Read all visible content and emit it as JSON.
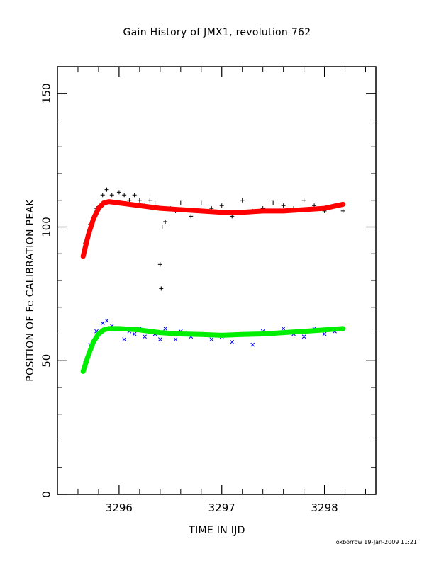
{
  "chart_data": {
    "type": "scatter",
    "title": "Gain History of JMX1, revolution 762",
    "xlabel": "TIME IN IJD",
    "ylabel": "POSITION OF Fe CALIBRATION PEAK",
    "xlim": [
      3295.4,
      3298.5
    ],
    "ylim": [
      0,
      160
    ],
    "xticks": [
      3296,
      3297,
      3298
    ],
    "yticks": [
      0,
      50,
      100,
      150
    ],
    "grid": false,
    "series": [
      {
        "marker": "plus",
        "color": "#000000",
        "x": [
          3295.67,
          3295.72,
          3295.78,
          3295.84,
          3295.88,
          3295.93,
          3296.0,
          3296.05,
          3296.1,
          3296.15,
          3296.2,
          3296.25,
          3296.3,
          3296.35,
          3296.4,
          3296.41,
          3296.42,
          3296.45,
          3296.5,
          3296.55,
          3296.6,
          3296.7,
          3296.8,
          3296.9,
          3297.0,
          3297.1,
          3297.2,
          3297.3,
          3297.4,
          3297.5,
          3297.6,
          3297.7,
          3297.8,
          3297.9,
          3298.0,
          3298.1,
          3298.18
        ],
        "y": [
          94,
          101,
          107,
          112,
          114,
          112,
          113,
          112,
          110,
          112,
          110,
          108,
          110,
          109,
          86,
          77,
          100,
          102,
          107,
          106,
          109,
          104,
          109,
          107,
          108,
          104,
          110,
          106,
          107,
          109,
          108,
          107,
          110,
          108,
          106,
          108,
          106
        ]
      },
      {
        "marker": "cross",
        "color": "#0000ff",
        "x": [
          3295.67,
          3295.72,
          3295.78,
          3295.84,
          3295.88,
          3295.93,
          3296.0,
          3296.05,
          3296.1,
          3296.15,
          3296.2,
          3296.25,
          3296.3,
          3296.35,
          3296.4,
          3296.45,
          3296.5,
          3296.55,
          3296.6,
          3296.7,
          3296.8,
          3296.9,
          3297.0,
          3297.1,
          3297.2,
          3297.3,
          3297.4,
          3297.5,
          3297.6,
          3297.7,
          3297.8,
          3297.9,
          3298.0,
          3298.1,
          3298.18
        ],
        "y": [
          49,
          56,
          61,
          64,
          65,
          63,
          62,
          58,
          61,
          60,
          62,
          59,
          61,
          60,
          58,
          62,
          60,
          58,
          61,
          59,
          60,
          58,
          59,
          57,
          60,
          56,
          61,
          60,
          62,
          60,
          59,
          62,
          60,
          61,
          62
        ]
      },
      {
        "marker": "thick-line",
        "color": "#ff0000",
        "x": [
          3295.65,
          3295.7,
          3295.75,
          3295.8,
          3295.85,
          3295.9,
          3296.0,
          3296.2,
          3296.4,
          3296.6,
          3296.8,
          3297.0,
          3297.2,
          3297.4,
          3297.6,
          3297.8,
          3298.0,
          3298.18
        ],
        "y": [
          89,
          97,
          103,
          107,
          109,
          109.5,
          109,
          108,
          107,
          106.5,
          106,
          105.5,
          105.5,
          106,
          106,
          106.5,
          107,
          108.5
        ]
      },
      {
        "marker": "thick-line",
        "color": "#00ee00",
        "x": [
          3295.65,
          3295.7,
          3295.75,
          3295.8,
          3295.85,
          3295.9,
          3296.0,
          3296.2,
          3296.4,
          3296.6,
          3296.8,
          3297.0,
          3297.2,
          3297.4,
          3297.6,
          3297.8,
          3298.0,
          3298.18
        ],
        "y": [
          46,
          52,
          57,
          60,
          61.5,
          62,
          62,
          61.5,
          60.5,
          60,
          59.8,
          59.5,
          59.8,
          60,
          60.5,
          61,
          61.5,
          62
        ]
      }
    ]
  },
  "footer": "oxborrow 19-Jan-2009 11:21"
}
